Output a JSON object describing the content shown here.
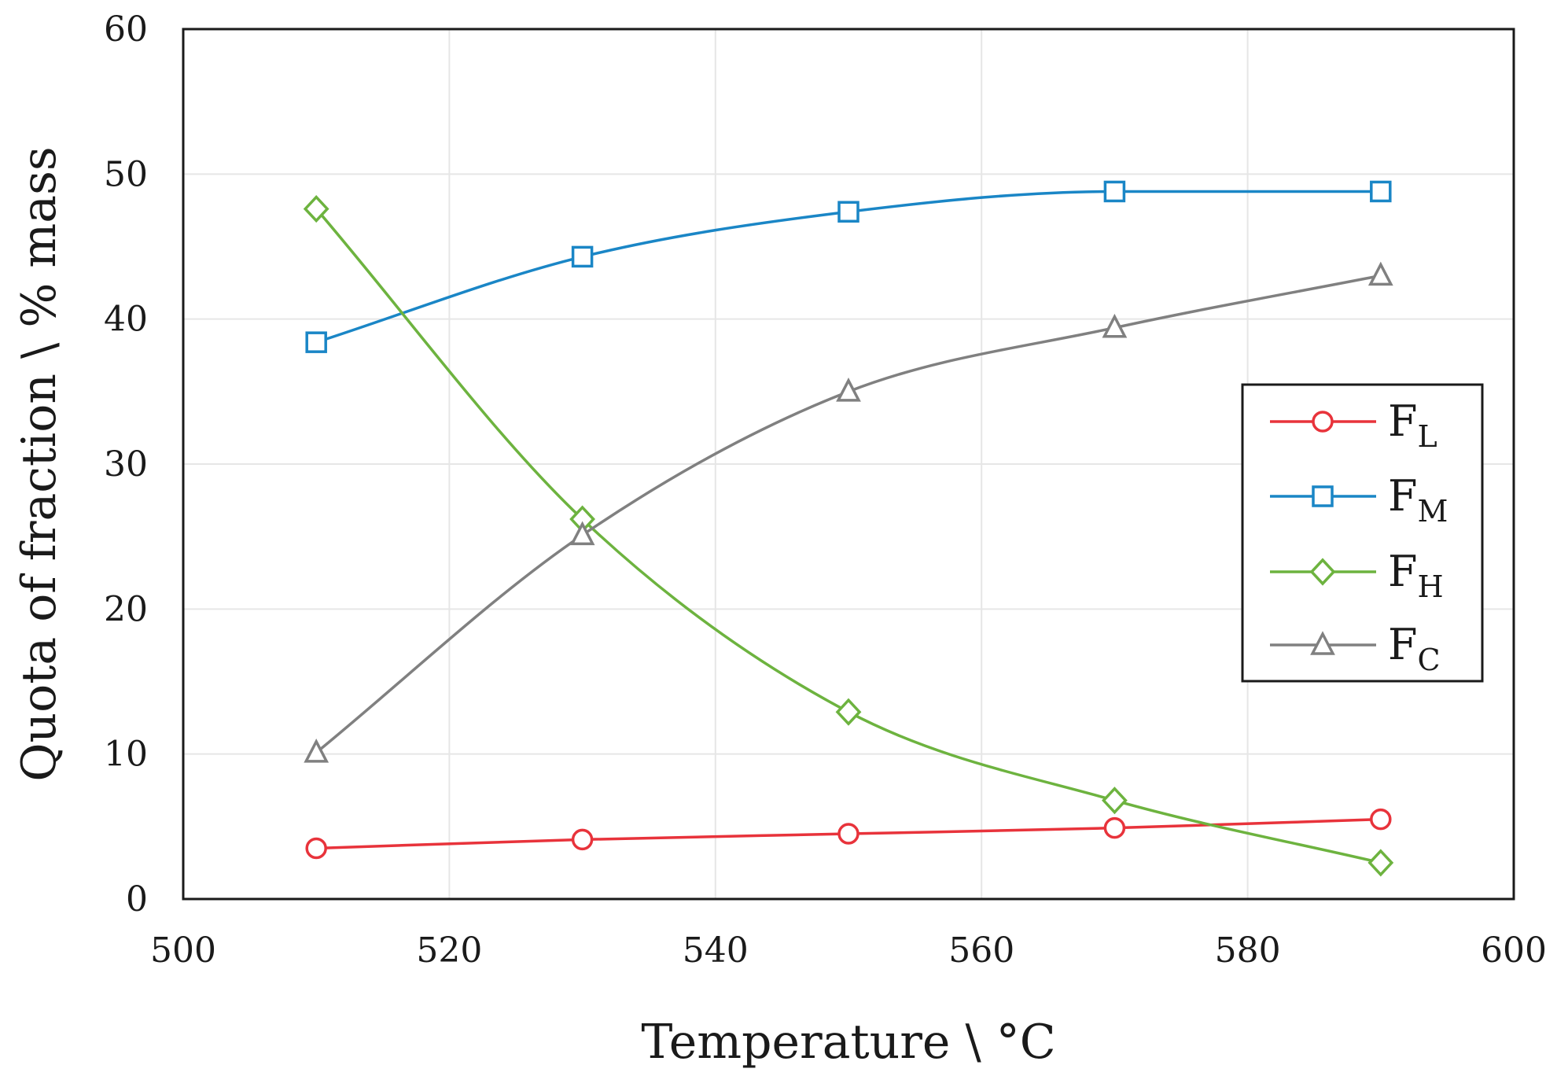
{
  "chart_data": {
    "type": "line",
    "title": "",
    "xlabel": "Temperature \\ °C",
    "ylabel": "Quota of fraction \\ % mass",
    "xlim": [
      500,
      600
    ],
    "ylim": [
      0,
      60
    ],
    "xticks": [
      500,
      520,
      540,
      560,
      580,
      600
    ],
    "yticks": [
      0,
      10,
      20,
      30,
      40,
      50,
      60
    ],
    "grid": true,
    "legend_position": "right",
    "x": [
      510,
      530,
      550,
      570,
      590
    ],
    "series": [
      {
        "name": "F",
        "subscript": "L",
        "marker": "circle",
        "color": "#e8333b",
        "values": [
          3.5,
          4.1,
          4.5,
          4.9,
          5.5
        ]
      },
      {
        "name": "F",
        "subscript": "M",
        "marker": "square",
        "color": "#1a86c6",
        "values": [
          38.4,
          44.3,
          47.4,
          48.8,
          48.8
        ]
      },
      {
        "name": "F",
        "subscript": "H",
        "marker": "diamond",
        "color": "#6db33f",
        "values": [
          47.6,
          26.2,
          12.9,
          6.8,
          2.5
        ]
      },
      {
        "name": "F",
        "subscript": "C",
        "marker": "triangle",
        "color": "#808080",
        "values": [
          10.1,
          25.1,
          35.0,
          39.4,
          43.0
        ]
      }
    ]
  }
}
